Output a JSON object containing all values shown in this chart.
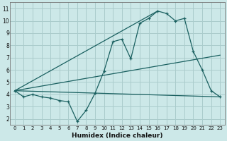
{
  "xlabel": "Humidex (Indice chaleur)",
  "ylabel": "",
  "background_color": "#cce8e8",
  "grid_color": "#aacccc",
  "line_color": "#1a6060",
  "xlim": [
    -0.5,
    23.5
  ],
  "ylim": [
    1.5,
    11.5
  ],
  "xticks": [
    0,
    1,
    2,
    3,
    4,
    5,
    6,
    7,
    8,
    9,
    10,
    11,
    12,
    13,
    14,
    15,
    16,
    17,
    18,
    19,
    20,
    21,
    22,
    23
  ],
  "yticks": [
    2,
    3,
    4,
    5,
    6,
    7,
    8,
    9,
    10,
    11
  ],
  "line1_x": [
    0,
    1,
    2,
    3,
    4,
    5,
    6,
    7,
    8,
    9,
    10,
    11,
    12,
    13,
    14,
    15,
    16,
    17,
    18,
    19,
    20,
    21,
    22,
    23
  ],
  "line1_y": [
    4.3,
    3.8,
    4.0,
    3.8,
    3.7,
    3.5,
    3.4,
    1.8,
    2.7,
    4.1,
    5.9,
    8.3,
    8.5,
    6.9,
    9.8,
    10.2,
    10.8,
    10.6,
    10.0,
    10.2,
    7.5,
    6.0,
    4.3,
    3.8
  ],
  "line2_x": [
    0,
    23
  ],
  "line2_y": [
    4.3,
    3.8
  ],
  "line3_x": [
    0,
    16
  ],
  "line3_y": [
    4.3,
    10.8
  ],
  "line4_x": [
    0,
    23
  ],
  "line4_y": [
    4.3,
    7.2
  ]
}
